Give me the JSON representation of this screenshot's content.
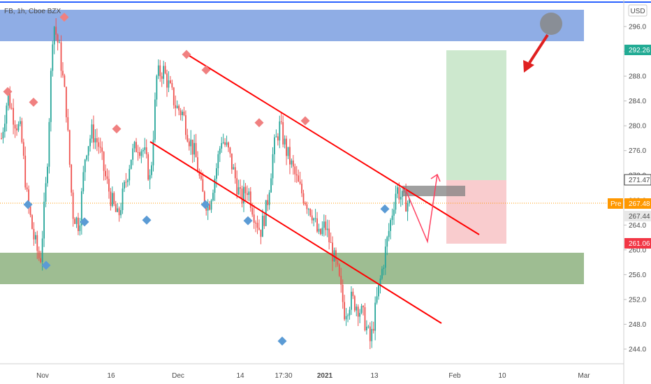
{
  "header": {
    "symbol_label": "FB, 1h, Cboe BZX",
    "currency_label": "USD"
  },
  "price_tags": {
    "target": "292.26",
    "entry": "271.47",
    "pre_label": "Pre",
    "pre_value": "267.48",
    "last": "267.44",
    "stop": "261.06"
  },
  "chart_data": {
    "type": "candlestick",
    "symbol": "FB",
    "interval": "1h",
    "exchange": "Cboe BZX",
    "currency": "USD",
    "ylim": [
      242,
      300
    ],
    "y_ticks": [
      296.0,
      292.0,
      288.0,
      284.0,
      280.0,
      276.0,
      272.0,
      268.0,
      264.0,
      260.0,
      256.0,
      252.0,
      248.0,
      244.0
    ],
    "x_ticks": [
      "Nov",
      "16",
      "Dec",
      "14",
      "17:30",
      "2021",
      "13",
      "Feb",
      "10",
      "Mar"
    ],
    "price_path": [
      278,
      285,
      281,
      279,
      268,
      262,
      258,
      272,
      297,
      292,
      283,
      266,
      264,
      276,
      279,
      277,
      272,
      268,
      265,
      270,
      275,
      277,
      276,
      271,
      288,
      289,
      286,
      283,
      282,
      278,
      275,
      269,
      267,
      272,
      278,
      276,
      272,
      268,
      270,
      266,
      263,
      267,
      276,
      280,
      276,
      273,
      270,
      268,
      266,
      262,
      264,
      260,
      256,
      250,
      252,
      251,
      249,
      245,
      252,
      258,
      264,
      270,
      268,
      267.44
    ],
    "levels": {
      "resistance_zone": [
        293.5,
        298.5
      ],
      "support_zone": [
        255,
        260
      ],
      "target": 292.26,
      "entry": 271.47,
      "pre_market": 267.48,
      "last": 267.44,
      "stop": 261.06
    },
    "markers": {
      "swing_highs": [
        285.5,
        283.8,
        297.5,
        279.5,
        291.5,
        289,
        280.5,
        280.8
      ],
      "swing_lows": [
        267.3,
        257.5,
        264.5,
        264.8,
        267.3,
        264.7,
        245.3,
        266.6
      ]
    }
  },
  "colors": {
    "up": "#26a69a",
    "down": "#ef5350",
    "channel": "#ff0000",
    "resistance_zone": "#7b9fe0",
    "support_zone": "#8db17f",
    "target_zone": "#c8e6c9",
    "stop_zone": "#f8c7c9",
    "high_marker": "#f08080",
    "low_marker": "#5b9bd5",
    "target_tag": "#22ab94",
    "stop_tag": "#f23645",
    "pre_tag": "#ff9800",
    "header_line": "#2962ff"
  }
}
